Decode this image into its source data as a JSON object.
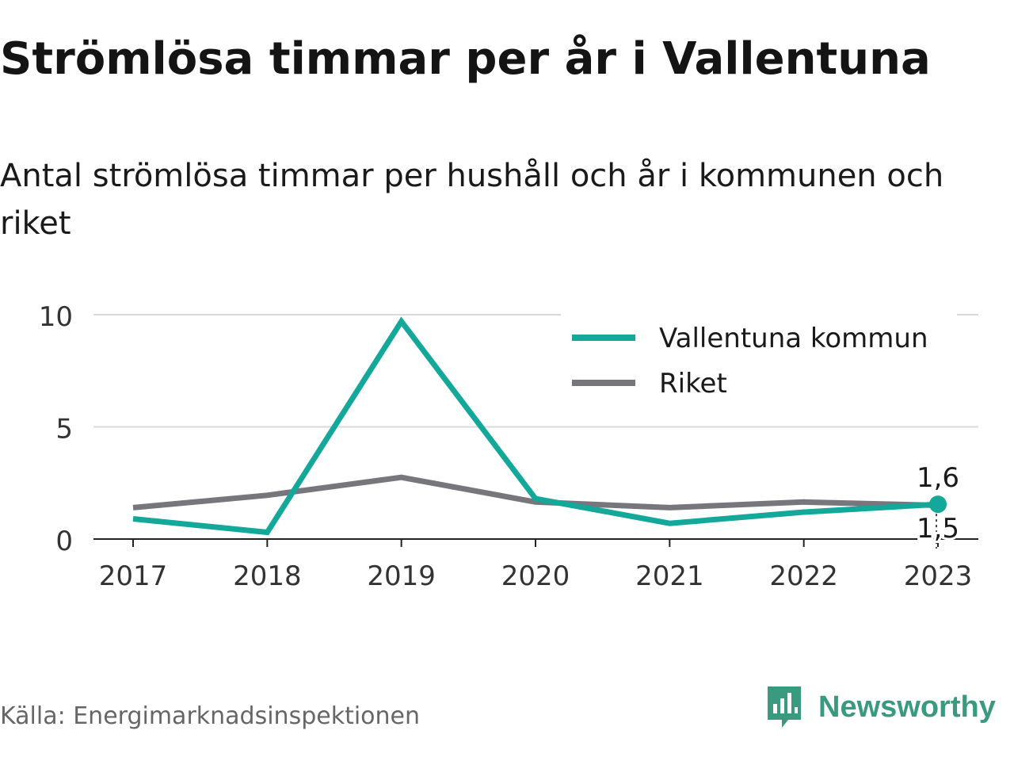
{
  "title": "Strömlösa timmar per år i Vallentuna",
  "subtitle": "Antal strömlösa timmar per hushåll och år i kommunen och riket",
  "source": "Källa: Energimarknadsinspektionen",
  "brand": {
    "name": "Newsworthy",
    "icon": "newsworthy-logo-icon",
    "color": "#3a9a80"
  },
  "chart_data": {
    "type": "line",
    "x": [
      "2017",
      "2018",
      "2019",
      "2020",
      "2021",
      "2022",
      "2023"
    ],
    "y_ticks": [
      "0",
      "5",
      "10"
    ],
    "ylim": [
      0,
      10
    ],
    "grid": true,
    "legend_position": "top-right",
    "series": [
      {
        "name": "Vallentuna kommun",
        "color": "#14a89a",
        "values": [
          0.9,
          0.3,
          9.7,
          1.8,
          0.7,
          1.2,
          1.55
        ]
      },
      {
        "name": "Riket",
        "color": "#76767c",
        "values": [
          1.4,
          1.95,
          2.75,
          1.65,
          1.4,
          1.65,
          1.5
        ]
      }
    ],
    "end_labels": [
      "1,6",
      "1,5"
    ]
  }
}
